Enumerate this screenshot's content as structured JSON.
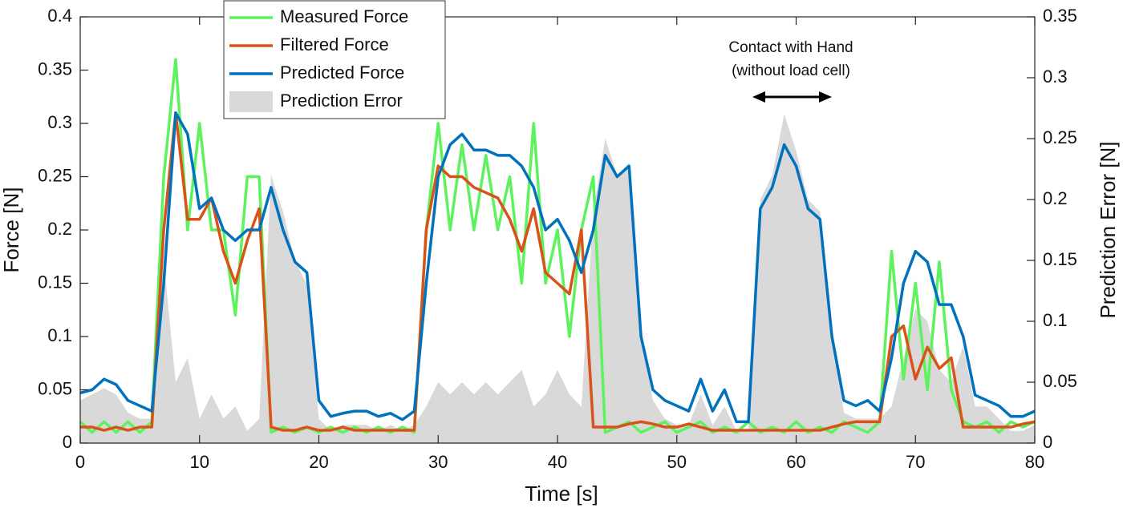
{
  "chart_data": {
    "type": "line",
    "xlabel": "Time [s]",
    "ylabel": "Force [N]",
    "y2label": "Prediction Error [N]",
    "annotations": [
      "Contact with Hand",
      "(without load cell)"
    ],
    "xlim": [
      0,
      80
    ],
    "xticks": [
      0,
      10,
      20,
      30,
      40,
      50,
      60,
      70,
      80
    ],
    "ylim": [
      0,
      0.4
    ],
    "yticks": [
      0,
      0.05,
      0.1,
      0.15,
      0.2,
      0.25,
      0.3,
      0.35,
      0.4
    ],
    "y2lim": [
      0,
      0.35
    ],
    "y2ticks": [
      0,
      0.05,
      0.1,
      0.15,
      0.2,
      0.25,
      0.3,
      0.35
    ],
    "grid": false,
    "legend": "top-left",
    "x": [
      0,
      1,
      2,
      3,
      4,
      5,
      6,
      7,
      8,
      9,
      10,
      11,
      12,
      13,
      14,
      15,
      16,
      17,
      18,
      19,
      20,
      21,
      22,
      23,
      24,
      25,
      26,
      27,
      28,
      29,
      30,
      31,
      32,
      33,
      34,
      35,
      36,
      37,
      38,
      39,
      40,
      41,
      42,
      43,
      44,
      45,
      46,
      47,
      48,
      49,
      50,
      51,
      52,
      53,
      54,
      55,
      56,
      57,
      58,
      59,
      60,
      61,
      62,
      63,
      64,
      65,
      66,
      67,
      68,
      69,
      70,
      71,
      72,
      73,
      74,
      75,
      76,
      77,
      78,
      79,
      80
    ],
    "series": [
      {
        "name": "Measured Force",
        "color": "#5ef25e",
        "values": [
          0.02,
          0.01,
          0.02,
          0.01,
          0.02,
          0.01,
          0.02,
          0.25,
          0.36,
          0.2,
          0.3,
          0.2,
          0.2,
          0.12,
          0.25,
          0.25,
          0.01,
          0.015,
          0.01,
          0.015,
          0.01,
          0.015,
          0.01,
          0.015,
          0.01,
          0.015,
          0.01,
          0.015,
          0.01,
          0.2,
          0.3,
          0.2,
          0.28,
          0.2,
          0.27,
          0.2,
          0.25,
          0.15,
          0.3,
          0.15,
          0.2,
          0.1,
          0.2,
          0.25,
          0.01,
          0.015,
          0.02,
          0.01,
          0.015,
          0.02,
          0.01,
          0.015,
          0.02,
          0.01,
          0.015,
          0.01,
          0.02,
          0.01,
          0.015,
          0.01,
          0.02,
          0.01,
          0.015,
          0.01,
          0.02,
          0.015,
          0.01,
          0.02,
          0.18,
          0.06,
          0.15,
          0.05,
          0.17,
          0.05,
          0.02,
          0.015,
          0.02,
          0.01,
          0.02,
          0.015,
          0.02
        ]
      },
      {
        "name": "Filtered Force",
        "color": "#d95319",
        "values": [
          0.015,
          0.015,
          0.012,
          0.015,
          0.012,
          0.015,
          0.015,
          0.2,
          0.31,
          0.21,
          0.21,
          0.23,
          0.18,
          0.15,
          0.19,
          0.22,
          0.015,
          0.012,
          0.012,
          0.015,
          0.012,
          0.012,
          0.015,
          0.012,
          0.012,
          0.012,
          0.012,
          0.012,
          0.012,
          0.2,
          0.26,
          0.25,
          0.25,
          0.24,
          0.235,
          0.23,
          0.21,
          0.18,
          0.22,
          0.16,
          0.15,
          0.14,
          0.2,
          0.015,
          0.015,
          0.015,
          0.018,
          0.02,
          0.018,
          0.015,
          0.015,
          0.018,
          0.015,
          0.012,
          0.012,
          0.012,
          0.012,
          0.012,
          0.012,
          0.012,
          0.012,
          0.012,
          0.012,
          0.015,
          0.018,
          0.02,
          0.02,
          0.02,
          0.1,
          0.11,
          0.06,
          0.09,
          0.07,
          0.08,
          0.015,
          0.015,
          0.015,
          0.015,
          0.015,
          0.018,
          0.02
        ]
      },
      {
        "name": "Predicted Force",
        "color": "#0072bd",
        "values": [
          0.047,
          0.05,
          0.06,
          0.055,
          0.04,
          0.035,
          0.03,
          0.15,
          0.31,
          0.29,
          0.22,
          0.23,
          0.2,
          0.19,
          0.2,
          0.2,
          0.24,
          0.2,
          0.17,
          0.16,
          0.04,
          0.025,
          0.028,
          0.03,
          0.03,
          0.025,
          0.028,
          0.022,
          0.03,
          0.15,
          0.25,
          0.28,
          0.29,
          0.275,
          0.275,
          0.27,
          0.27,
          0.26,
          0.24,
          0.2,
          0.21,
          0.19,
          0.16,
          0.2,
          0.27,
          0.25,
          0.26,
          0.1,
          0.05,
          0.04,
          0.035,
          0.03,
          0.06,
          0.03,
          0.05,
          0.02,
          0.02,
          0.22,
          0.24,
          0.28,
          0.26,
          0.22,
          0.21,
          0.1,
          0.04,
          0.035,
          0.04,
          0.03,
          0.08,
          0.15,
          0.18,
          0.17,
          0.13,
          0.13,
          0.1,
          0.045,
          0.04,
          0.035,
          0.025,
          0.025,
          0.03
        ]
      },
      {
        "name": "Prediction Error",
        "color": "#d9d9d9",
        "axis": "y2",
        "area": true,
        "values": [
          0.035,
          0.04,
          0.045,
          0.04,
          0.025,
          0.02,
          0.02,
          0.15,
          0.05,
          0.07,
          0.02,
          0.04,
          0.02,
          0.03,
          0.01,
          0.02,
          0.22,
          0.19,
          0.15,
          0.13,
          0.02,
          0.01,
          0.015,
          0.015,
          0.015,
          0.01,
          0.015,
          0.01,
          0.015,
          0.03,
          0.05,
          0.04,
          0.05,
          0.04,
          0.05,
          0.04,
          0.05,
          0.06,
          0.03,
          0.04,
          0.06,
          0.04,
          0.03,
          0.19,
          0.25,
          0.22,
          0.23,
          0.09,
          0.035,
          0.02,
          0.015,
          0.015,
          0.04,
          0.015,
          0.03,
          0.01,
          0.01,
          0.2,
          0.22,
          0.27,
          0.24,
          0.2,
          0.19,
          0.09,
          0.025,
          0.02,
          0.02,
          0.02,
          0.03,
          0.07,
          0.11,
          0.1,
          0.06,
          0.05,
          0.08,
          0.03,
          0.03,
          0.02,
          0.01,
          0.01,
          0.015
        ]
      }
    ]
  }
}
